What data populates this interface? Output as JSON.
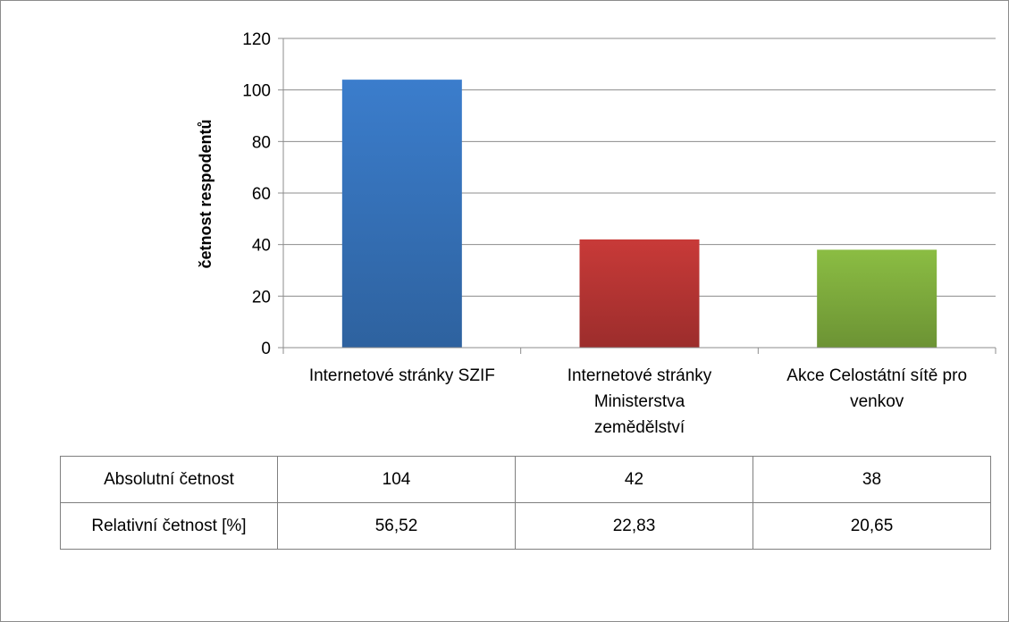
{
  "chart_data": {
    "type": "bar",
    "categories": [
      [
        "Internetové stránky SZIF"
      ],
      [
        "Internetové stránky",
        "Ministerstva",
        "zemědělství"
      ],
      [
        "Akce Celostátní sítě pro",
        "venkov"
      ]
    ],
    "values": [
      104,
      42,
      38
    ],
    "colors": [
      "#3b7dcc",
      "#c83a38",
      "#8bbd43"
    ],
    "ylabel": "četnost respodentů",
    "ylim": [
      0,
      120
    ],
    "yticks": [
      0,
      20,
      40,
      60,
      80,
      100,
      120
    ],
    "grid": true
  },
  "table": {
    "rows": [
      {
        "label": "Absolutní četnost",
        "values": [
          "104",
          "42",
          "38"
        ]
      },
      {
        "label": "Relativní četnost [%]",
        "values": [
          "56,52",
          "22,83",
          "20,65"
        ]
      }
    ]
  }
}
